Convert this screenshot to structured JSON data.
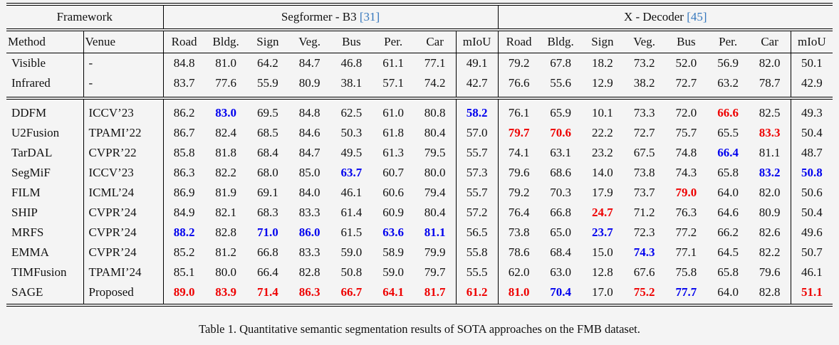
{
  "page": {
    "caption": "Table 1. Quantitative semantic segmentation results of SOTA approaches on the FMB dataset."
  },
  "colors": {
    "best": "#ee0000",
    "second_best": "#0000ee",
    "citation": "#3577bd"
  },
  "table": {
    "framework_header": "Framework",
    "groups": [
      {
        "label": "Segformer - B3 ",
        "cite": "[31]"
      },
      {
        "label": "X - Decoder ",
        "cite": "[45]"
      }
    ],
    "columns": [
      "Method",
      "Venue",
      "Road",
      "Bldg.",
      "Sign",
      "Veg.",
      "Bus",
      "Per.",
      "Car",
      "mIoU",
      "Road",
      "Bldg.",
      "Sign",
      "Veg.",
      "Bus",
      "Per.",
      "Car",
      "mIoU"
    ],
    "baseline_rows": [
      {
        "method": "Visible",
        "venue": "-",
        "values": [
          "84.8",
          "81.0",
          "64.2",
          "84.7",
          "46.8",
          "61.1",
          "77.1",
          "49.1",
          "79.2",
          "67.8",
          "18.2",
          "73.2",
          "52.0",
          "56.9",
          "82.0",
          "50.1"
        ]
      },
      {
        "method": "Infrared",
        "venue": "-",
        "values": [
          "83.7",
          "77.6",
          "55.9",
          "80.9",
          "38.1",
          "57.1",
          "74.2",
          "42.7",
          "76.6",
          "55.6",
          "12.9",
          "38.2",
          "72.7",
          "63.2",
          "78.7",
          "42.9"
        ]
      }
    ],
    "method_rows": [
      {
        "method": "DDFM",
        "venue": "ICCV’23",
        "values": [
          "86.2",
          "b:83.0",
          "69.5",
          "84.8",
          "62.5",
          "61.0",
          "80.8",
          "b:58.2",
          "76.1",
          "65.9",
          "10.1",
          "73.3",
          "72.0",
          "r:66.6",
          "82.5",
          "49.3"
        ]
      },
      {
        "method": "U2Fusion",
        "venue": "TPAMI’22",
        "values": [
          "86.7",
          "82.4",
          "68.5",
          "84.6",
          "50.3",
          "61.8",
          "80.4",
          "57.0",
          "r:79.7",
          "r:70.6",
          "22.2",
          "72.7",
          "75.7",
          "65.5",
          "r:83.3",
          "50.4"
        ]
      },
      {
        "method": "TarDAL",
        "venue": "CVPR’22",
        "values": [
          "85.8",
          "81.8",
          "68.4",
          "84.7",
          "49.5",
          "61.3",
          "79.5",
          "55.7",
          "74.1",
          "63.1",
          "23.2",
          "67.5",
          "74.8",
          "b:66.4",
          "81.1",
          "48.7"
        ]
      },
      {
        "method": "SegMiF",
        "venue": "ICCV’23",
        "values": [
          "86.3",
          "82.2",
          "68.0",
          "85.0",
          "b:63.7",
          "60.7",
          "80.0",
          "57.3",
          "79.6",
          "68.6",
          "14.0",
          "73.8",
          "74.3",
          "65.8",
          "b:83.2",
          "b:50.8"
        ]
      },
      {
        "method": "FILM",
        "venue": "ICML’24",
        "values": [
          "86.9",
          "81.9",
          "69.1",
          "84.0",
          "46.1",
          "60.6",
          "79.4",
          "55.7",
          "79.2",
          "70.3",
          "17.9",
          "73.7",
          "r:79.0",
          "64.0",
          "82.0",
          "50.6"
        ]
      },
      {
        "method": "SHIP",
        "venue": "CVPR’24",
        "values": [
          "84.9",
          "82.1",
          "68.3",
          "83.3",
          "61.4",
          "60.9",
          "80.4",
          "57.2",
          "76.4",
          "66.8",
          "r:24.7",
          "71.2",
          "76.3",
          "64.6",
          "80.9",
          "50.4"
        ]
      },
      {
        "method": "MRFS",
        "venue": "CVPR’24",
        "values": [
          "b:88.2",
          "82.8",
          "b:71.0",
          "b:86.0",
          "61.5",
          "b:63.6",
          "b:81.1",
          "56.5",
          "73.8",
          "65.0",
          "b:23.7",
          "72.3",
          "77.2",
          "66.2",
          "82.6",
          "49.6"
        ]
      },
      {
        "method": "EMMA",
        "venue": "CVPR’24",
        "values": [
          "85.2",
          "81.2",
          "66.8",
          "83.3",
          "59.0",
          "58.9",
          "79.9",
          "55.8",
          "78.6",
          "68.4",
          "15.0",
          "b:74.3",
          "77.1",
          "64.5",
          "82.2",
          "50.7"
        ]
      },
      {
        "method": "TIMFusion",
        "venue": "TPAMI’24",
        "values": [
          "85.1",
          "80.0",
          "66.4",
          "82.8",
          "50.8",
          "59.0",
          "79.7",
          "55.5",
          "62.0",
          "63.0",
          "12.8",
          "67.6",
          "75.8",
          "65.8",
          "79.6",
          "46.1"
        ]
      },
      {
        "method": "SAGE",
        "venue": "Proposed",
        "values": [
          "r:89.0",
          "r:83.9",
          "r:71.4",
          "r:86.3",
          "r:66.7",
          "r:64.1",
          "r:81.7",
          "r:61.2",
          "r:81.0",
          "b:70.4",
          "17.0",
          "r:75.2",
          "b:77.7",
          "64.0",
          "82.8",
          "r:51.1"
        ]
      }
    ]
  }
}
